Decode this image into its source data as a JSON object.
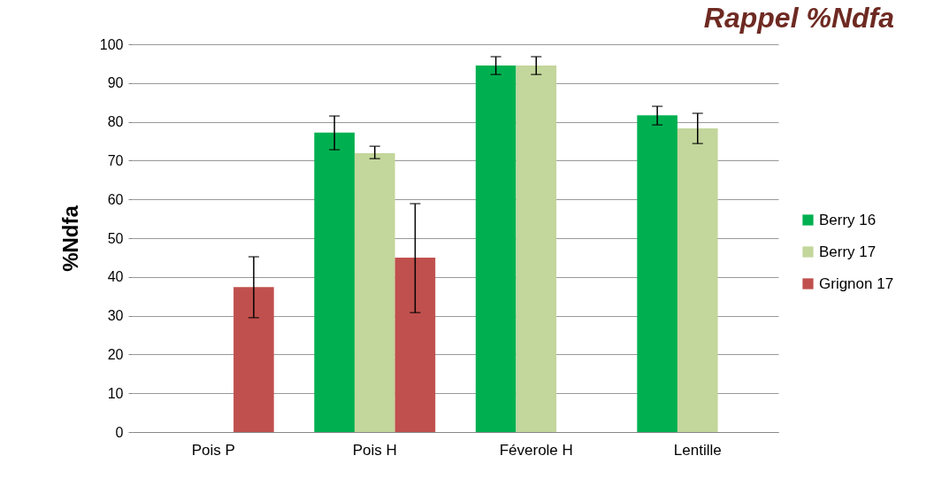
{
  "chart_data": {
    "type": "bar",
    "title": "Rappel %Ndfa",
    "ylabel": "%Ndfa",
    "categories": [
      "Pois P",
      "Pois H",
      "Féverole H",
      "Lentille"
    ],
    "series": [
      {
        "name": "Berry 16",
        "color": "#00b050",
        "values": [
          null,
          77.2,
          94.5,
          81.7
        ],
        "errors": [
          null,
          [
            72.8,
            81.5
          ],
          [
            92.2,
            96.8
          ],
          [
            79.2,
            84.0
          ]
        ]
      },
      {
        "name": "Berry 17",
        "color": "#c3d69b",
        "values": [
          null,
          71.9,
          94.5,
          78.3
        ],
        "errors": [
          null,
          [
            70.5,
            73.7
          ],
          [
            92.2,
            96.8
          ],
          [
            74.4,
            82.2
          ]
        ]
      },
      {
        "name": "Grignon 17",
        "color": "#c0504d",
        "values": [
          37.4,
          45.0,
          null,
          null
        ],
        "errors": [
          [
            29.5,
            45.2
          ],
          [
            30.8,
            58.9
          ],
          null,
          null
        ]
      }
    ],
    "ylim": [
      0,
      100
    ],
    "yticks": [
      0,
      10,
      20,
      30,
      40,
      50,
      60,
      70,
      80,
      90,
      100
    ],
    "grid": "y",
    "legend": "right"
  }
}
